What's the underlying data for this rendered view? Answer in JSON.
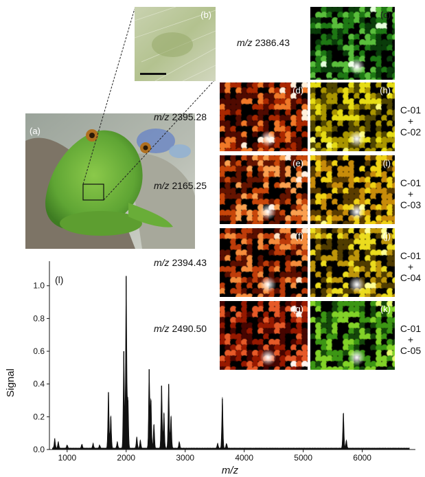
{
  "panels": {
    "a": "(a)",
    "b": "(b)",
    "c": "(c)",
    "d": "(d)",
    "e": "(e)",
    "f": "(f)",
    "g": "(g)",
    "h": "(h)",
    "i": "(i)",
    "j": "(j)",
    "k": "(k)",
    "l": "(l)"
  },
  "mz_labels": {
    "prefix": "m/z",
    "c": "2386.43",
    "d": "2395.28",
    "e": "2165.25",
    "f": "2394.43",
    "g": "2490.50"
  },
  "overlays": {
    "h": {
      "top": "C-01",
      "plus": "+",
      "bottom": "C-02"
    },
    "i": {
      "top": "C-01",
      "plus": "+",
      "bottom": "C-03"
    },
    "j": {
      "top": "C-01",
      "plus": "+",
      "bottom": "C-04"
    },
    "k": {
      "top": "C-01",
      "plus": "+",
      "bottom": "C-05"
    }
  },
  "colors": {
    "green_map": "#1a6b10",
    "red_map": "#b02000",
    "yellow_map": "#e8e000",
    "spectrum": "#111111"
  },
  "chart_data": {
    "type": "line",
    "xlabel": "m/z",
    "ylabel": "Signal",
    "xlim": [
      700,
      6900
    ],
    "ylim": [
      0,
      1.15
    ],
    "x_ticks": [
      1000,
      2000,
      3000,
      4000,
      5000,
      6000
    ],
    "y_ticks": [
      0.0,
      0.2,
      0.4,
      0.6,
      0.8,
      1.0
    ],
    "grid": false,
    "peaks": [
      {
        "x": 790,
        "y": 0.06
      },
      {
        "x": 850,
        "y": 0.04
      },
      {
        "x": 1000,
        "y": 0.02
      },
      {
        "x": 1250,
        "y": 0.025
      },
      {
        "x": 1440,
        "y": 0.03
      },
      {
        "x": 1550,
        "y": 0.02
      },
      {
        "x": 1700,
        "y": 0.35
      },
      {
        "x": 1740,
        "y": 0.2
      },
      {
        "x": 1850,
        "y": 0.04
      },
      {
        "x": 1960,
        "y": 0.6
      },
      {
        "x": 2000,
        "y": 1.06
      },
      {
        "x": 2030,
        "y": 0.3
      },
      {
        "x": 2180,
        "y": 0.07
      },
      {
        "x": 2240,
        "y": 0.05
      },
      {
        "x": 2390,
        "y": 0.49
      },
      {
        "x": 2420,
        "y": 0.3
      },
      {
        "x": 2470,
        "y": 0.15
      },
      {
        "x": 2600,
        "y": 0.39
      },
      {
        "x": 2640,
        "y": 0.22
      },
      {
        "x": 2720,
        "y": 0.4
      },
      {
        "x": 2760,
        "y": 0.2
      },
      {
        "x": 2900,
        "y": 0.04
      },
      {
        "x": 3550,
        "y": 0.03
      },
      {
        "x": 3630,
        "y": 0.31
      },
      {
        "x": 3700,
        "y": 0.03
      },
      {
        "x": 5680,
        "y": 0.22
      },
      {
        "x": 5730,
        "y": 0.05
      }
    ]
  }
}
